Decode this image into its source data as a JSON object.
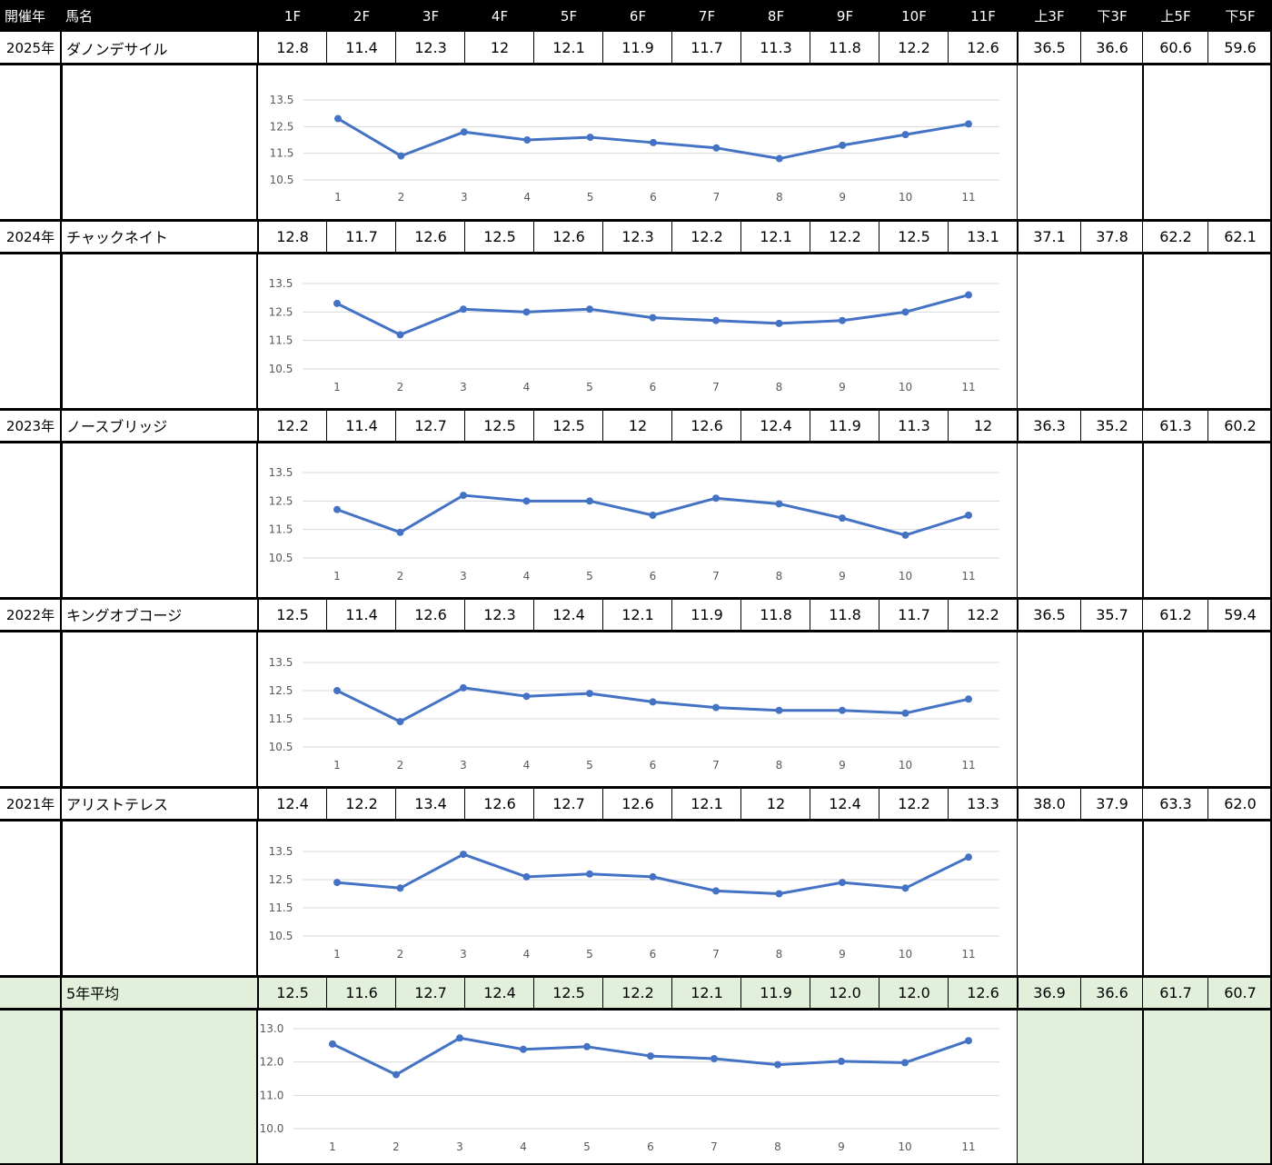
{
  "header": {
    "year": "開催年",
    "horse": "馬名",
    "laps": [
      "1F",
      "2F",
      "3F",
      "4F",
      "5F",
      "6F",
      "7F",
      "8F",
      "9F",
      "10F",
      "11F"
    ],
    "agg": [
      "上3F",
      "下3F",
      "上5F",
      "下5F"
    ]
  },
  "rows": [
    {
      "year": "2025年",
      "horse": "ダノンデサイル",
      "laps": [
        "12.8",
        "11.4",
        "12.3",
        "12",
        "12.1",
        "11.9",
        "11.7",
        "11.3",
        "11.8",
        "12.2",
        "12.6"
      ],
      "agg": [
        "36.5",
        "36.6",
        "60.6",
        "59.6"
      ]
    },
    {
      "year": "2024年",
      "horse": "チャックネイト",
      "laps": [
        "12.8",
        "11.7",
        "12.6",
        "12.5",
        "12.6",
        "12.3",
        "12.2",
        "12.1",
        "12.2",
        "12.5",
        "13.1"
      ],
      "agg": [
        "37.1",
        "37.8",
        "62.2",
        "62.1"
      ]
    },
    {
      "year": "2023年",
      "horse": "ノースブリッジ",
      "laps": [
        "12.2",
        "11.4",
        "12.7",
        "12.5",
        "12.5",
        "12",
        "12.6",
        "12.4",
        "11.9",
        "11.3",
        "12"
      ],
      "agg": [
        "36.3",
        "35.2",
        "61.3",
        "60.2"
      ]
    },
    {
      "year": "2022年",
      "horse": "キングオブコージ",
      "laps": [
        "12.5",
        "11.4",
        "12.6",
        "12.3",
        "12.4",
        "12.1",
        "11.9",
        "11.8",
        "11.8",
        "11.7",
        "12.2"
      ],
      "agg": [
        "36.5",
        "35.7",
        "61.2",
        "59.4"
      ]
    },
    {
      "year": "2021年",
      "horse": "アリストテレス",
      "laps": [
        "12.4",
        "12.2",
        "13.4",
        "12.6",
        "12.7",
        "12.6",
        "12.1",
        "12",
        "12.4",
        "12.2",
        "13.3"
      ],
      "agg": [
        "38.0",
        "37.9",
        "63.3",
        "62.0"
      ]
    }
  ],
  "average": {
    "year": "",
    "horse": "5年平均",
    "laps": [
      "12.5",
      "11.6",
      "12.7",
      "12.4",
      "12.5",
      "12.2",
      "12.1",
      "11.9",
      "12.0",
      "12.0",
      "12.6"
    ],
    "agg": [
      "36.9",
      "36.6",
      "61.7",
      "60.7"
    ]
  },
  "colors": {
    "line": "#4472c4",
    "grid": "#d9d9d9",
    "tick": "#595959",
    "header_bg": "#000000",
    "average_bg": "#e2efda"
  },
  "chart_data": [
    {
      "type": "line",
      "x": [
        1,
        2,
        3,
        4,
        5,
        6,
        7,
        8,
        9,
        10,
        11
      ],
      "y_ticks": [
        "13.5",
        "12.5",
        "11.5",
        "10.5"
      ],
      "ylim": [
        10.5,
        13.5
      ],
      "series": [
        {
          "values": [
            12.8,
            11.4,
            12.3,
            12,
            12.1,
            11.9,
            11.7,
            11.3,
            11.8,
            12.2,
            12.6
          ]
        }
      ]
    },
    {
      "type": "line",
      "x": [
        1,
        2,
        3,
        4,
        5,
        6,
        7,
        8,
        9,
        10,
        11
      ],
      "y_ticks": [
        "13.5",
        "12.5",
        "11.5",
        "10.5"
      ],
      "ylim": [
        10.5,
        13.5
      ],
      "series": [
        {
          "values": [
            12.8,
            11.7,
            12.6,
            12.5,
            12.6,
            12.3,
            12.2,
            12.1,
            12.2,
            12.5,
            13.1
          ]
        }
      ]
    },
    {
      "type": "line",
      "x": [
        1,
        2,
        3,
        4,
        5,
        6,
        7,
        8,
        9,
        10,
        11
      ],
      "y_ticks": [
        "13.5",
        "12.5",
        "11.5",
        "10.5"
      ],
      "ylim": [
        10.5,
        13.5
      ],
      "series": [
        {
          "values": [
            12.2,
            11.4,
            12.7,
            12.5,
            12.5,
            12,
            12.6,
            12.4,
            11.9,
            11.3,
            12
          ]
        }
      ]
    },
    {
      "type": "line",
      "x": [
        1,
        2,
        3,
        4,
        5,
        6,
        7,
        8,
        9,
        10,
        11
      ],
      "y_ticks": [
        "13.5",
        "12.5",
        "11.5",
        "10.5"
      ],
      "ylim": [
        10.5,
        13.5
      ],
      "series": [
        {
          "values": [
            12.5,
            11.4,
            12.6,
            12.3,
            12.4,
            12.1,
            11.9,
            11.8,
            11.8,
            11.7,
            12.2
          ]
        }
      ]
    },
    {
      "type": "line",
      "x": [
        1,
        2,
        3,
        4,
        5,
        6,
        7,
        8,
        9,
        10,
        11
      ],
      "y_ticks": [
        "13.5",
        "12.5",
        "11.5",
        "10.5"
      ],
      "ylim": [
        10.5,
        13.5
      ],
      "series": [
        {
          "values": [
            12.4,
            12.2,
            13.4,
            12.6,
            12.7,
            12.6,
            12.1,
            12,
            12.4,
            12.2,
            13.3
          ]
        }
      ]
    },
    {
      "type": "line",
      "x": [
        1,
        2,
        3,
        4,
        5,
        6,
        7,
        8,
        9,
        10,
        11
      ],
      "y_ticks": [
        "13.0",
        "12.0",
        "11.0",
        "10.0"
      ],
      "ylim": [
        10.0,
        13.0
      ],
      "series": [
        {
          "values": [
            12.54,
            11.62,
            12.72,
            12.38,
            12.46,
            12.18,
            12.1,
            11.92,
            12.02,
            11.98,
            12.64
          ]
        }
      ]
    }
  ]
}
